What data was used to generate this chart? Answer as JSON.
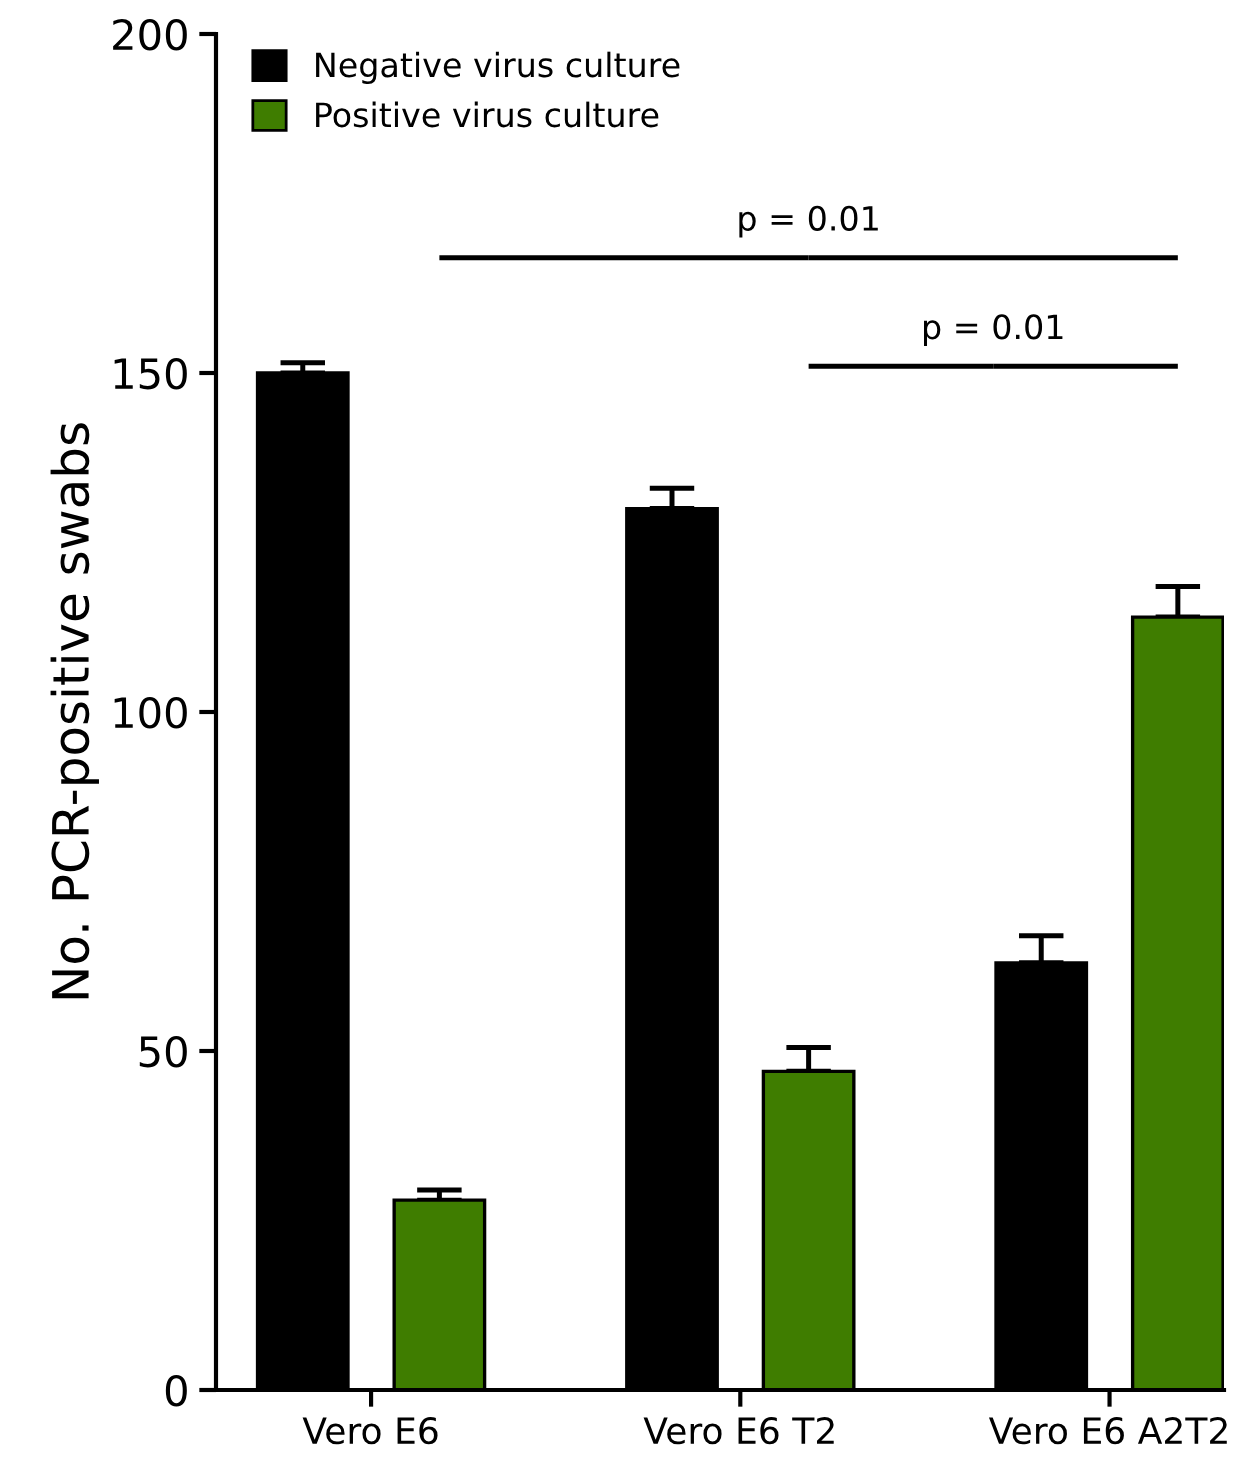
{
  "chart_data": {
    "type": "bar",
    "ylabel": "No. PCR-positive swabs",
    "categories": [
      "Vero E6",
      "Vero E6 T2",
      "Vero E6 A2T2"
    ],
    "series": [
      {
        "name": "Negative virus culture",
        "color": "#000000",
        "values": [
          150,
          130,
          63
        ],
        "errors": [
          1.5,
          3,
          4
        ]
      },
      {
        "name": "Positive virus culture",
        "color": "#3f7d00",
        "values": [
          28,
          47,
          114
        ],
        "errors": [
          1.5,
          3.5,
          4.5
        ]
      }
    ],
    "ylim": [
      0,
      200
    ],
    "yticks": [
      0,
      50,
      100,
      150,
      200
    ],
    "grid": false,
    "legend": "top left",
    "annotations": [
      "p = 0.01",
      "p = 0.01"
    ]
  }
}
